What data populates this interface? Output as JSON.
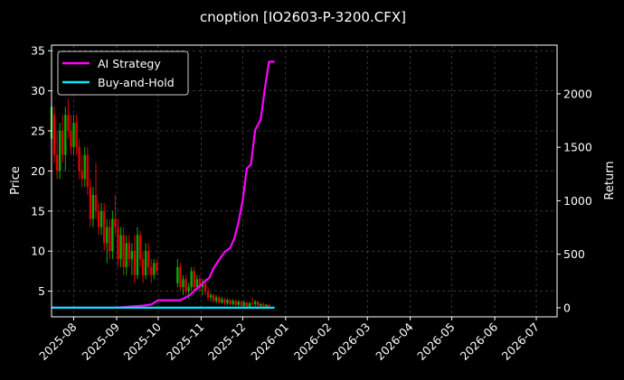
{
  "chart_data": {
    "type": "line",
    "title": "cnoption [IO2603-P-3200.CFX]",
    "xlabel": "",
    "ylabel_left": "Price",
    "ylabel_right": "Return",
    "grid": true,
    "legend": "top-left",
    "x_ticks": [
      "2025-08",
      "2025-09",
      "2025-10",
      "2025-11",
      "2025-12",
      "2026-01",
      "2026-02",
      "2026-03",
      "2026-04",
      "2026-05",
      "2026-06",
      "2026-07"
    ],
    "x_range": [
      "2025-07-16",
      "2026-07-16"
    ],
    "y_left_ticks": [
      5,
      10,
      15,
      20,
      25,
      30,
      35
    ],
    "y_left_range": [
      1.8,
      35.7
    ],
    "y_right_ticks": [
      0,
      500,
      1000,
      1500,
      2000
    ],
    "y_right_range": [
      -85,
      2455
    ],
    "colors": {
      "up": "#00b000",
      "down": "#e00000",
      "strategy": "#ff00ff",
      "buyhold": "#00e5ff",
      "grid": "#555555"
    },
    "series": [
      {
        "name": "AI Strategy",
        "axis": "right",
        "color": "#ff00ff",
        "points": [
          [
            "2025-07-16",
            0
          ],
          [
            "2025-08-01",
            0
          ],
          [
            "2025-08-20",
            0
          ],
          [
            "2025-09-01",
            0
          ],
          [
            "2025-09-10",
            10
          ],
          [
            "2025-09-20",
            20
          ],
          [
            "2025-09-26",
            30
          ],
          [
            "2025-10-01",
            70
          ],
          [
            "2025-10-10",
            70
          ],
          [
            "2025-10-17",
            70
          ],
          [
            "2025-10-20",
            90
          ],
          [
            "2025-10-24",
            120
          ],
          [
            "2025-10-29",
            180
          ],
          [
            "2025-11-03",
            240
          ],
          [
            "2025-11-07",
            280
          ],
          [
            "2025-11-10",
            370
          ],
          [
            "2025-11-13",
            430
          ],
          [
            "2025-11-18",
            520
          ],
          [
            "2025-11-22",
            560
          ],
          [
            "2025-11-25",
            650
          ],
          [
            "2025-11-28",
            800
          ],
          [
            "2025-12-01",
            1000
          ],
          [
            "2025-12-04",
            1300
          ],
          [
            "2025-12-07",
            1340
          ],
          [
            "2025-12-10",
            1660
          ],
          [
            "2025-12-14",
            1760
          ],
          [
            "2025-12-17",
            2050
          ],
          [
            "2025-12-20",
            2300
          ],
          [
            "2025-12-24",
            2300
          ]
        ]
      },
      {
        "name": "Buy-and-Hold",
        "axis": "right",
        "color": "#00e5ff",
        "points": [
          [
            "2025-07-16",
            0
          ],
          [
            "2025-12-24",
            0
          ]
        ]
      }
    ],
    "candles": [
      [
        "2025-07-16",
        24,
        29,
        22,
        28
      ],
      [
        "2025-07-18",
        27,
        28,
        21,
        22
      ],
      [
        "2025-07-20",
        22,
        25,
        19,
        20
      ],
      [
        "2025-07-22",
        20,
        26,
        19,
        25
      ],
      [
        "2025-07-24",
        25,
        27,
        21,
        22
      ],
      [
        "2025-07-26",
        22,
        28,
        20,
        27
      ],
      [
        "2025-07-28",
        27,
        29,
        24,
        25
      ],
      [
        "2025-07-30",
        25,
        27,
        22,
        23
      ],
      [
        "2025-08-01",
        23,
        27,
        22,
        26
      ],
      [
        "2025-08-03",
        26,
        27,
        22,
        23
      ],
      [
        "2025-08-05",
        23,
        24,
        19,
        20
      ],
      [
        "2025-08-07",
        20,
        22,
        18,
        19
      ],
      [
        "2025-08-09",
        19,
        23,
        18,
        22
      ],
      [
        "2025-08-11",
        22,
        23,
        17,
        18
      ],
      [
        "2025-08-13",
        18,
        19,
        13,
        14
      ],
      [
        "2025-08-15",
        14,
        18,
        13,
        17
      ],
      [
        "2025-08-17",
        17,
        21,
        14,
        15
      ],
      [
        "2025-08-19",
        15,
        16,
        12,
        13
      ],
      [
        "2025-08-21",
        13,
        16,
        12,
        15
      ],
      [
        "2025-08-23",
        15,
        16,
        10,
        11
      ],
      [
        "2025-08-25",
        11,
        14,
        8.5,
        13
      ],
      [
        "2025-08-27",
        13,
        14,
        9,
        10
      ],
      [
        "2025-08-29",
        10,
        15,
        9,
        14
      ],
      [
        "2025-08-31",
        14,
        17,
        12,
        13
      ],
      [
        "2025-09-02",
        13,
        14,
        8,
        9
      ],
      [
        "2025-09-04",
        9,
        13,
        8,
        12
      ],
      [
        "2025-09-06",
        12,
        13,
        7,
        8
      ],
      [
        "2025-09-08",
        8,
        12,
        7,
        11
      ],
      [
        "2025-09-10",
        11,
        12,
        8,
        9
      ],
      [
        "2025-09-12",
        9,
        11,
        7,
        10
      ],
      [
        "2025-09-14",
        10,
        12,
        6,
        7
      ],
      [
        "2025-09-16",
        7,
        13,
        6.5,
        12
      ],
      [
        "2025-09-18",
        12,
        12.5,
        8,
        9
      ],
      [
        "2025-09-20",
        9,
        10,
        6,
        7
      ],
      [
        "2025-09-22",
        7,
        11,
        6.5,
        10
      ],
      [
        "2025-09-24",
        10,
        11,
        7,
        8
      ],
      [
        "2025-09-26",
        8,
        9,
        6,
        7
      ],
      [
        "2025-09-28",
        7,
        9,
        6.5,
        8.5
      ],
      [
        "2025-09-30",
        8.5,
        9,
        7,
        7.5
      ],
      [
        "2025-10-15",
        6,
        9,
        5.5,
        8
      ],
      [
        "2025-10-17",
        8,
        8.5,
        5,
        5.5
      ],
      [
        "2025-10-19",
        5.5,
        7,
        4.5,
        6.5
      ],
      [
        "2025-10-21",
        6.5,
        7,
        4.5,
        5
      ],
      [
        "2025-10-23",
        5,
        6,
        4,
        5.5
      ],
      [
        "2025-10-25",
        5.5,
        8,
        5,
        7.5
      ],
      [
        "2025-10-27",
        7.5,
        8,
        5,
        5.5
      ],
      [
        "2025-10-29",
        5.5,
        7,
        5,
        6.5
      ],
      [
        "2025-10-31",
        6.5,
        7,
        5,
        5.5
      ],
      [
        "2025-11-02",
        5.5,
        6.5,
        4.5,
        6
      ],
      [
        "2025-11-04",
        6,
        6.5,
        4.5,
        5
      ],
      [
        "2025-11-06",
        5,
        5.5,
        3.8,
        4.2
      ],
      [
        "2025-11-08",
        4.2,
        4.8,
        3.7,
        4.5
      ],
      [
        "2025-11-10",
        4.5,
        4.7,
        3.5,
        3.8
      ],
      [
        "2025-11-12",
        3.8,
        4.5,
        3.5,
        4.2
      ],
      [
        "2025-11-14",
        4.2,
        4.4,
        3.4,
        3.6
      ],
      [
        "2025-11-16",
        3.6,
        4.3,
        3.4,
        4
      ],
      [
        "2025-11-18",
        4,
        4.2,
        3.3,
        3.5
      ],
      [
        "2025-11-20",
        3.5,
        4.1,
        3.3,
        3.9
      ],
      [
        "2025-11-22",
        3.9,
        4,
        3.2,
        3.4
      ],
      [
        "2025-11-24",
        3.4,
        4,
        3.2,
        3.8
      ],
      [
        "2025-11-26",
        3.8,
        3.9,
        3.1,
        3.3
      ],
      [
        "2025-11-28",
        3.3,
        3.9,
        3.1,
        3.7
      ],
      [
        "2025-11-30",
        3.7,
        3.8,
        3.1,
        3.2
      ],
      [
        "2025-12-02",
        3.2,
        3.8,
        3,
        3.6
      ],
      [
        "2025-12-04",
        3.6,
        3.7,
        3,
        3.1
      ],
      [
        "2025-12-06",
        3.1,
        3.7,
        3,
        3.5
      ],
      [
        "2025-12-08",
        3.5,
        4.2,
        3.2,
        3.4
      ],
      [
        "2025-12-10",
        3.4,
        3.9,
        3.1,
        3.7
      ],
      [
        "2025-12-12",
        3.7,
        3.8,
        3,
        3.2
      ],
      [
        "2025-12-14",
        3.2,
        3.5,
        3,
        3.4
      ],
      [
        "2025-12-16",
        3.4,
        3.6,
        2.9,
        3.1
      ],
      [
        "2025-12-18",
        3.1,
        3.4,
        2.9,
        3.3
      ],
      [
        "2025-12-20",
        3.3,
        3.4,
        2.9,
        3
      ]
    ]
  }
}
